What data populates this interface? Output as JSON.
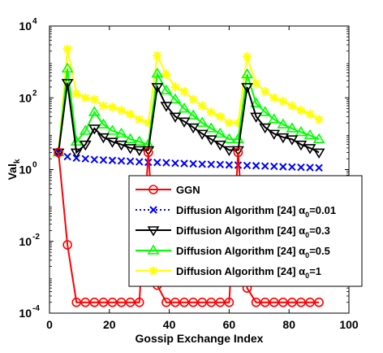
{
  "chart_data": {
    "type": "line",
    "title": "",
    "xlabel": "Gossip Exchange Index",
    "ylabel": "Val",
    "ylabel_sub": "k",
    "xlim": [
      0,
      100
    ],
    "ylim": [
      0.0001,
      10000
    ],
    "yscale": "log",
    "grid": false,
    "legend_position": "lower-right",
    "x_ticks": [
      0,
      20,
      40,
      60,
      80,
      100
    ],
    "x_tick_labels": [
      "0",
      "20",
      "40",
      "60",
      "80",
      "100"
    ],
    "y_ticks": [
      0.0001,
      0.01,
      1,
      100,
      10000
    ],
    "y_tick_labels": [
      {
        "base": "10",
        "exp": "-4"
      },
      {
        "base": "10",
        "exp": "-2"
      },
      {
        "base": "10",
        "exp": "0"
      },
      {
        "base": "10",
        "exp": "2"
      },
      {
        "base": "10",
        "exp": "4"
      }
    ],
    "x": [
      3,
      6,
      9,
      12,
      15,
      18,
      21,
      24,
      27,
      30,
      33,
      36,
      39,
      42,
      45,
      48,
      51,
      54,
      57,
      60,
      63,
      66,
      69,
      72,
      75,
      78,
      81,
      84,
      87,
      90
    ],
    "series": [
      {
        "name": "GGN",
        "legend_label": {
          "text": "GGN"
        },
        "color": "#ff0000",
        "marker": "circle",
        "line": "solid",
        "values": [
          3,
          0.008,
          0.0002,
          0.0002,
          0.0002,
          0.0002,
          0.0002,
          0.0002,
          0.0002,
          0.0002,
          3,
          0.0006,
          0.0002,
          0.0002,
          0.0002,
          0.0002,
          0.0002,
          0.0002,
          0.0002,
          0.0002,
          3,
          0.0005,
          0.0002,
          0.0002,
          0.0002,
          0.0002,
          0.0002,
          0.0002,
          0.0002,
          0.0002
        ]
      },
      {
        "name": "Diffusion Algorithm [24] α0=0.01",
        "legend_label": {
          "text": "Diffusion Algorithm [24] α",
          "sub": "0",
          "suffix": "=0.01"
        },
        "color": "#0000ff",
        "marker": "x",
        "line": "dotted",
        "values": [
          3,
          2.3,
          2.1,
          2,
          1.9,
          1.85,
          1.8,
          1.75,
          1.7,
          1.65,
          1.6,
          1.58,
          1.55,
          1.5,
          1.48,
          1.45,
          1.42,
          1.4,
          1.38,
          1.35,
          1.33,
          1.3,
          1.28,
          1.25,
          1.23,
          1.2,
          1.18,
          1.16,
          1.14,
          1.12
        ]
      },
      {
        "name": "Diffusion Algorithm [24] α0=0.3",
        "legend_label": {
          "text": "Diffusion Algorithm [24] α",
          "sub": "0",
          "suffix": "=0.3"
        },
        "color": "#000000",
        "marker": "triangle-down",
        "line": "solid",
        "values": [
          3,
          260,
          3,
          5,
          14,
          8,
          6,
          5,
          4,
          3.5,
          3.5,
          200,
          60,
          30,
          22,
          15,
          10,
          7,
          5,
          3.5,
          3.5,
          200,
          30,
          15,
          10,
          8,
          7,
          5,
          4,
          3
        ]
      },
      {
        "name": "Diffusion Algorithm [24] α0=0.5",
        "legend_label": {
          "text": "Diffusion Algorithm [24] α",
          "sub": "0",
          "suffix": "=0.5"
        },
        "color": "#00ff00",
        "marker": "triangle-up",
        "line": "solid",
        "values": [
          3,
          650,
          6,
          12,
          40,
          18,
          12,
          10,
          7,
          6,
          5,
          470,
          160,
          90,
          50,
          32,
          20,
          14,
          10,
          7,
          7,
          450,
          70,
          40,
          25,
          18,
          14,
          11,
          9,
          7
        ]
      },
      {
        "name": "Diffusion Algorithm [24] α0=1",
        "legend_label": {
          "text": "Diffusion Algorithm [24] α",
          "sub": "0",
          "suffix": "=1"
        },
        "color": "#ffff00",
        "marker": "star",
        "line": "solid",
        "values": [
          3,
          2300,
          130,
          100,
          90,
          60,
          55,
          45,
          35,
          25,
          20,
          1500,
          450,
          200,
          150,
          90,
          60,
          40,
          30,
          20,
          20,
          1400,
          250,
          150,
          100,
          80,
          60,
          45,
          35,
          25
        ]
      }
    ]
  }
}
